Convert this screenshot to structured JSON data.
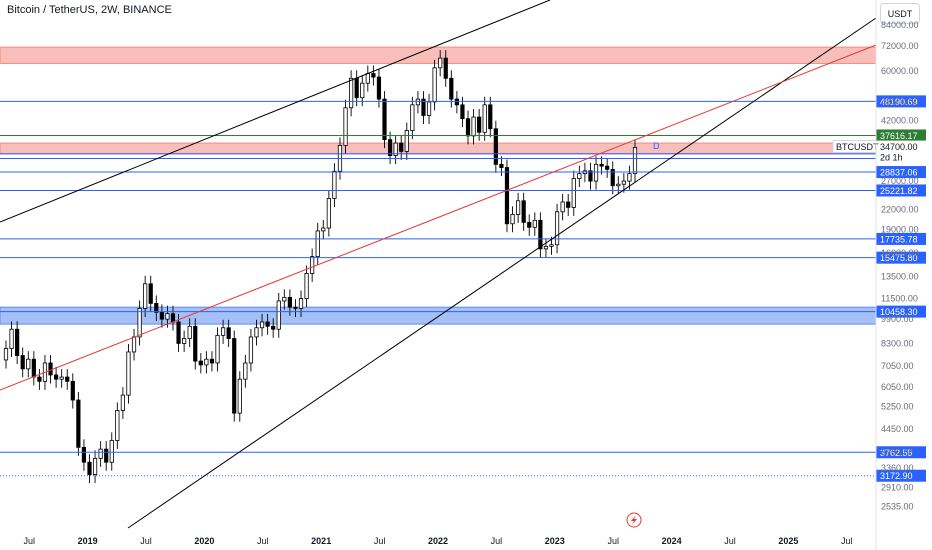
{
  "header": {
    "title": "Bitcoin / TetherUS, 2W, BINANCE",
    "currency_button": "USDT"
  },
  "chart_data": {
    "type": "candlestick",
    "symbol": "BTCUSDT",
    "countdown": "2d 1h",
    "last_price": "34700.00",
    "y_scale": "log",
    "ylim": [
      2300,
      95000
    ],
    "y_ticks": [
      "84000.00",
      "72000.00",
      "60000.00",
      "48000.00",
      "42000.00",
      "34700.00",
      "27000.00",
      "22000.00",
      "19000.00",
      "16000.00",
      "13500.00",
      "11500.00",
      "9900.00",
      "8300.00",
      "7050.00",
      "6050.00",
      "5250.00",
      "4450.00",
      "3760.00",
      "3360.00",
      "2910.00",
      "2535.00"
    ],
    "x_axis": {
      "labels": [
        "Jul",
        "2019",
        "Jul",
        "2020",
        "Jul",
        "2021",
        "Jul",
        "2022",
        "Jul",
        "2023",
        "Jul",
        "2024",
        "Jul",
        "2025",
        "Jul"
      ],
      "bold": [
        "2019",
        "2020",
        "2021",
        "2022",
        "2023",
        "2024",
        "2025"
      ],
      "start": "2018-04",
      "end": "2025-10"
    },
    "price_levels": [
      {
        "label": "48190.69",
        "value": 48190.69,
        "color": "#2962ff"
      },
      {
        "label": "37616.17",
        "value": 37616.17,
        "color": "#2e7d32"
      },
      {
        "label": "32938.54",
        "value": 32938.54,
        "color": "#2962ff"
      },
      {
        "label": "31835.01",
        "value": 31835.01,
        "color": "#2962ff"
      },
      {
        "label": "28837.06",
        "value": 28837.06,
        "color": "#2962ff"
      },
      {
        "label": "25221.82",
        "value": 25221.82,
        "color": "#2962ff"
      },
      {
        "label": "17735.78",
        "value": 17735.78,
        "color": "#2962ff"
      },
      {
        "label": "15475.80",
        "value": 15475.8,
        "color": "#2962ff"
      },
      {
        "label": "10458.30",
        "value": 10458.3,
        "color": "#2962ff"
      },
      {
        "label": "3762.55",
        "value": 3762.55,
        "color": "#2962ff"
      },
      {
        "label": "3172.90",
        "value": 3172.9,
        "color": "#2962ff"
      }
    ],
    "zones": [
      {
        "from": 63500,
        "to": 71500,
        "color": "#f28b82"
      },
      {
        "from": 32900,
        "to": 35600,
        "color": "#f28b82"
      },
      {
        "from": 9550,
        "to": 10800,
        "color": "#5b8def"
      }
    ],
    "annotation": "D",
    "accent_colors": {
      "up": "#ffffff",
      "down": "#000000",
      "resistance": "#e53935",
      "support": "#2962ff",
      "trend": "#000000"
    }
  }
}
